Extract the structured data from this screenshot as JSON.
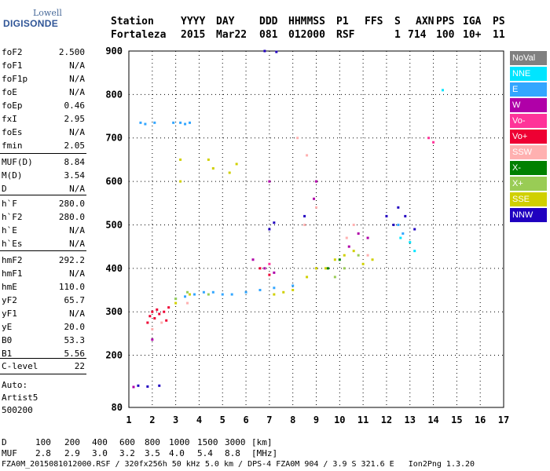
{
  "logo": {
    "top": "Lowell",
    "bottom": "DIGISONDE"
  },
  "header": {
    "row1": [
      "Station",
      "YYYY",
      "DAY",
      "DDD",
      "HHMMSS",
      "P1",
      "FFS",
      "S",
      "AXN",
      "PPS",
      "IGA",
      "PS"
    ],
    "row2": [
      "Fortaleza",
      "2015",
      "Mar22",
      "081",
      "012000",
      "RSF",
      "1",
      "714",
      "100",
      "10+",
      "11"
    ]
  },
  "params": [
    {
      "name": "foF2",
      "value": "2.500"
    },
    {
      "name": "foF1",
      "value": "N/A"
    },
    {
      "name": "foF1p",
      "value": "N/A"
    },
    {
      "name": "foE",
      "value": "N/A"
    },
    {
      "name": "foEp",
      "value": "0.46"
    },
    {
      "name": "fxI",
      "value": "2.95"
    },
    {
      "name": "foEs",
      "value": "N/A"
    },
    {
      "name": "fmin",
      "value": "2.05"
    },
    {
      "name": "MUF(D)",
      "value": "8.84"
    },
    {
      "name": "M(D)",
      "value": "3.54"
    },
    {
      "name": "D",
      "value": "N/A"
    },
    {
      "name": "h`F",
      "value": "280.0"
    },
    {
      "name": "h`F2",
      "value": "280.0"
    },
    {
      "name": "h`E",
      "value": "N/A"
    },
    {
      "name": "h`Es",
      "value": "N/A"
    },
    {
      "name": "hmF2",
      "value": "292.2"
    },
    {
      "name": "hmF1",
      "value": "N/A"
    },
    {
      "name": "hmE",
      "value": "110.0"
    },
    {
      "name": "yF2",
      "value": "65.7"
    },
    {
      "name": "yF1",
      "value": "N/A"
    },
    {
      "name": "yE",
      "value": "20.0"
    },
    {
      "name": "B0",
      "value": "53.3"
    },
    {
      "name": "B1",
      "value": "5.56"
    },
    {
      "name": "C-level",
      "value": "22"
    }
  ],
  "auto": {
    "line1": "Auto:",
    "line2": "Artist5",
    "line3": "500200"
  },
  "legend": [
    {
      "label": "NoVal",
      "color": "#808080"
    },
    {
      "label": "NNE",
      "color": "#00e5ff"
    },
    {
      "label": "E",
      "color": "#33a6ff"
    },
    {
      "label": "W",
      "color": "#b000a8"
    },
    {
      "label": "Vo-",
      "color": "#ff3399"
    },
    {
      "label": "Vo+",
      "color": "#ee0033"
    },
    {
      "label": "SSW",
      "color": "#ffb0b0"
    },
    {
      "label": "X-",
      "color": "#008000"
    },
    {
      "label": "X+",
      "color": "#99cc55"
    },
    {
      "label": "SSE",
      "color": "#d0d000"
    },
    {
      "label": "NNW",
      "color": "#2000c0"
    }
  ],
  "footer": {
    "d_label": "D",
    "d_values": [
      "100",
      "200",
      "400",
      "600",
      "800",
      "1000",
      "1500",
      "3000",
      "[km]"
    ],
    "muf_label": "MUF",
    "muf_values": [
      "2.8",
      "2.9",
      "3.0",
      "3.2",
      "3.5",
      "4.0",
      "5.4",
      "8.8",
      "[MHz]"
    ],
    "file_line": "FZA0M_2015081012000.RSF / 320fx256h 50 kHz 5.0 km / DPS-4 FZA0M 904 / 3.9 S 321.6 E   Ion2Png 1.3.20"
  },
  "chart_data": {
    "type": "scatter",
    "title": "",
    "xlabel": "",
    "ylabel": "",
    "xlim": [
      1,
      17
    ],
    "ylim": [
      80,
      900
    ],
    "xticks": [
      1,
      2,
      3,
      4,
      5,
      6,
      7,
      8,
      9,
      10,
      11,
      12,
      13,
      14,
      15,
      16,
      17
    ],
    "yticks": [
      80,
      200,
      300,
      400,
      500,
      600,
      700,
      800,
      900
    ],
    "grid": true,
    "series": [
      {
        "name": "Vo+",
        "color": "#ee0033",
        "points": [
          [
            1.9,
            290
          ],
          [
            2.0,
            300
          ],
          [
            2.1,
            285
          ],
          [
            2.2,
            305
          ],
          [
            2.3,
            295
          ],
          [
            2.5,
            300
          ],
          [
            2.6,
            280
          ],
          [
            1.8,
            275
          ],
          [
            2.7,
            310
          ],
          [
            6.6,
            400
          ],
          [
            7.0,
            385
          ]
        ]
      },
      {
        "name": "E",
        "color": "#33a6ff",
        "points": [
          [
            1.5,
            735
          ],
          [
            1.7,
            732
          ],
          [
            2.1,
            735
          ],
          [
            2.9,
            735
          ],
          [
            3.2,
            735
          ],
          [
            3.4,
            732
          ],
          [
            3.6,
            735
          ],
          [
            3.0,
            330
          ],
          [
            3.4,
            335
          ],
          [
            3.8,
            340
          ],
          [
            4.2,
            345
          ],
          [
            4.6,
            345
          ],
          [
            5.0,
            340
          ],
          [
            5.4,
            340
          ],
          [
            6.0,
            345
          ],
          [
            6.6,
            350
          ],
          [
            7.2,
            355
          ],
          [
            8.0,
            360
          ],
          [
            12.5,
            500
          ],
          [
            12.7,
            480
          ]
        ]
      },
      {
        "name": "SSE",
        "color": "#d0d000",
        "points": [
          [
            3.0,
            320
          ],
          [
            3.6,
            340
          ],
          [
            4.4,
            650
          ],
          [
            4.6,
            630
          ],
          [
            5.3,
            620
          ],
          [
            5.6,
            640
          ],
          [
            7.2,
            340
          ],
          [
            7.6,
            345
          ],
          [
            8.0,
            350
          ],
          [
            8.6,
            380
          ],
          [
            9.0,
            400
          ],
          [
            9.4,
            400
          ],
          [
            9.8,
            420
          ],
          [
            10.2,
            430
          ],
          [
            10.6,
            440
          ],
          [
            11.0,
            410
          ],
          [
            11.4,
            420
          ],
          [
            3.2,
            600
          ],
          [
            3.2,
            650
          ]
        ]
      },
      {
        "name": "SSW",
        "color": "#ffb0b0",
        "points": [
          [
            2.0,
            260
          ],
          [
            2.4,
            275
          ],
          [
            3.5,
            320
          ],
          [
            8.5,
            500
          ],
          [
            9.0,
            540
          ],
          [
            10.3,
            470
          ],
          [
            10.6,
            500
          ],
          [
            11.2,
            430
          ],
          [
            8.2,
            700
          ],
          [
            8.6,
            660
          ]
        ]
      },
      {
        "name": "W",
        "color": "#b000a8",
        "points": [
          [
            6.3,
            420
          ],
          [
            6.8,
            400
          ],
          [
            7.0,
            600
          ],
          [
            7.2,
            390
          ],
          [
            8.9,
            560
          ],
          [
            9.0,
            600
          ],
          [
            10.8,
            480
          ],
          [
            10.4,
            450
          ],
          [
            11.2,
            470
          ],
          [
            1.2,
            127
          ],
          [
            2.0,
            236
          ]
        ]
      },
      {
        "name": "NNW",
        "color": "#2000c0",
        "points": [
          [
            12.0,
            520
          ],
          [
            12.3,
            500
          ],
          [
            12.5,
            540
          ],
          [
            12.8,
            520
          ],
          [
            13.2,
            490
          ],
          [
            7.0,
            490
          ],
          [
            7.2,
            505
          ],
          [
            8.5,
            520
          ],
          [
            1.4,
            130
          ],
          [
            1.8,
            128
          ],
          [
            2.3,
            130
          ],
          [
            6.8,
            900
          ],
          [
            7.3,
            898
          ]
        ]
      },
      {
        "name": "NNE",
        "color": "#00e5ff",
        "points": [
          [
            12.6,
            470
          ],
          [
            13.0,
            460
          ],
          [
            13.2,
            440
          ],
          [
            14.4,
            810
          ]
        ]
      },
      {
        "name": "X+",
        "color": "#99cc55",
        "points": [
          [
            3.0,
            330
          ],
          [
            3.5,
            345
          ],
          [
            4.4,
            340
          ],
          [
            9.8,
            380
          ],
          [
            10.2,
            400
          ],
          [
            10.8,
            430
          ]
        ]
      },
      {
        "name": "Vo-",
        "color": "#ff3399",
        "points": [
          [
            7.0,
            410
          ],
          [
            14.0,
            690
          ],
          [
            13.8,
            700
          ]
        ]
      },
      {
        "name": "X-",
        "color": "#008000",
        "points": [
          [
            9.5,
            400
          ],
          [
            10.0,
            420
          ]
        ]
      }
    ]
  }
}
